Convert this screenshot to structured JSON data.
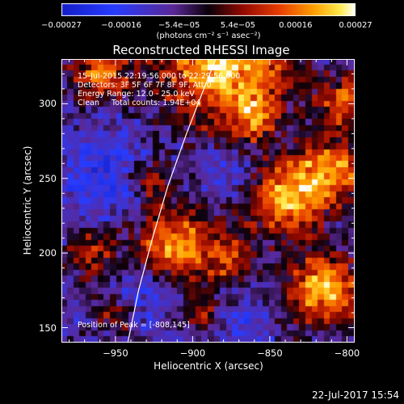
{
  "chart_data": {
    "type": "heatmap",
    "title": "Reconstructed RHESSI Image",
    "xlabel": "Heliocentric X (arcsec)",
    "ylabel": "Heliocentric Y (arcsec)",
    "xlim": [
      -985,
      -795
    ],
    "ylim": [
      140,
      330
    ],
    "x_ticks": [
      -950,
      -900,
      -850,
      -800
    ],
    "x_tick_labels": [
      "−950",
      "−900",
      "−850",
      "−800"
    ],
    "y_ticks": [
      150,
      200,
      250,
      300
    ],
    "y_tick_labels": [
      "150",
      "200",
      "250",
      "300"
    ],
    "colorbar": {
      "range": [
        -0.00027,
        0.00027
      ],
      "ticks": [
        -0.00027,
        -0.00016,
        -5.4e-05,
        5.4e-05,
        0.00016,
        0.00027
      ],
      "tick_labels": [
        "−0.00027",
        "−0.00016",
        "−5.4e−05",
        "5.4e−05",
        "0.00016",
        "0.00027"
      ],
      "unit": "(photons cm⁻² s⁻¹ asec⁻²)"
    },
    "annotations": {
      "time": "15-Jul-2015 22:19:56.000 to 22:29:56.000",
      "detectors": "Detectors: 3F 5F 6F 7F 8F 9F, Att 0",
      "energy": "Energy Range: 12.0 - 25.0 keV",
      "clean": "Clean     Total counts: 1.94E+04",
      "peak": "Position of Peak = [-808,145]"
    },
    "limb_curve": [
      [
        -942,
        140
      ],
      [
        -935,
        175
      ],
      [
        -926,
        210
      ],
      [
        -916,
        245
      ],
      [
        -904,
        280
      ],
      [
        -892,
        312
      ],
      [
        -885,
        330
      ]
    ],
    "grid_nx": 48,
    "grid_ny": 47,
    "hot_spots": [
      {
        "x": -880,
        "y": 325,
        "amp": 1.0,
        "sigma": 30
      },
      {
        "x": -960,
        "y": 320,
        "amp": 0.7,
        "sigma": 14
      },
      {
        "x": -910,
        "y": 205,
        "amp": 0.85,
        "sigma": 20
      },
      {
        "x": -928,
        "y": 248,
        "amp": 0.5,
        "sigma": 10
      },
      {
        "x": -840,
        "y": 235,
        "amp": 0.85,
        "sigma": 18
      },
      {
        "x": -810,
        "y": 255,
        "amp": 0.8,
        "sigma": 16
      },
      {
        "x": -815,
        "y": 175,
        "amp": 0.9,
        "sigma": 18
      },
      {
        "x": -875,
        "y": 195,
        "amp": 0.5,
        "sigma": 10
      },
      {
        "x": -965,
        "y": 200,
        "amp": 0.55,
        "sigma": 12
      },
      {
        "x": -950,
        "y": 160,
        "amp": 0.45,
        "sigma": 10
      },
      {
        "x": -800,
        "y": 300,
        "amp": 0.75,
        "sigma": 12
      },
      {
        "x": -860,
        "y": 290,
        "amp": 0.55,
        "sigma": 10
      },
      {
        "x": -895,
        "y": 160,
        "amp": 0.45,
        "sigma": 9
      }
    ],
    "cold_spots": [
      {
        "x": -955,
        "y": 250,
        "amp": 0.7,
        "sigma": 22
      },
      {
        "x": -930,
        "y": 175,
        "amp": 0.8,
        "sigma": 14
      },
      {
        "x": -880,
        "y": 255,
        "amp": 0.55,
        "sigma": 14
      },
      {
        "x": -865,
        "y": 150,
        "amp": 0.5,
        "sigma": 10
      },
      {
        "x": -875,
        "y": 295,
        "amp": 0.35,
        "sigma": 8
      }
    ]
  },
  "footer": {
    "date": "22-Jul-2017 15:54"
  }
}
